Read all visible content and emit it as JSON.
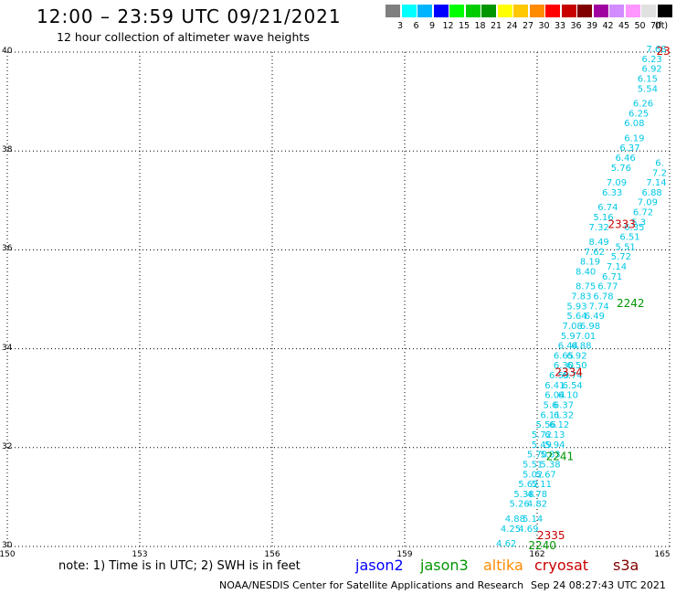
{
  "header": {
    "title": "12:00 – 23:59 UTC 09/21/2021",
    "subtitle": "12 hour collection of altimeter wave heights"
  },
  "scale": {
    "unit": "(ft)",
    "bins": [
      {
        "color": "#7f7f7f",
        "label": "3"
      },
      {
        "color": "#00ffff",
        "label": "6"
      },
      {
        "color": "#00b4ff",
        "label": "9"
      },
      {
        "color": "#0000ff",
        "label": "12"
      },
      {
        "color": "#00ff00",
        "label": "15"
      },
      {
        "color": "#00cc00",
        "label": "18"
      },
      {
        "color": "#009600",
        "label": "21"
      },
      {
        "color": "#ffff00",
        "label": "24"
      },
      {
        "color": "#ffc800",
        "label": "27"
      },
      {
        "color": "#ff8c00",
        "label": "30"
      },
      {
        "color": "#ff0000",
        "label": "33"
      },
      {
        "color": "#c80000",
        "label": "36"
      },
      {
        "color": "#800000",
        "label": "39"
      },
      {
        "color": "#a000a0",
        "label": "42"
      },
      {
        "color": "#d28cff",
        "label": "45"
      },
      {
        "color": "#ff96ff",
        "label": "50"
      },
      {
        "color": "#e0e0e0",
        "label": "70"
      },
      {
        "color": "#000000",
        "label": ""
      }
    ]
  },
  "axes": {
    "lat_labels": [
      "40",
      "38",
      "36",
      "34",
      "32",
      "30"
    ],
    "lon_labels": [
      "150",
      "153",
      "156",
      "159",
      "162",
      "165"
    ]
  },
  "chart_data": {
    "type": "scatter",
    "lon_range": [
      150,
      165
    ],
    "lat_range": [
      30,
      40
    ],
    "grid": true,
    "value_color": "#00c8e6",
    "series": [
      {
        "name": "jason3",
        "values": [
          [
            161.3,
            30.0,
            "4.62"
          ],
          [
            161.4,
            30.3,
            "4.25"
          ],
          [
            161.5,
            30.5,
            "4.88"
          ],
          [
            161.6,
            30.8,
            "5.26"
          ],
          [
            161.7,
            31.0,
            "5.38"
          ],
          [
            161.8,
            31.2,
            "5.62"
          ],
          [
            161.9,
            31.4,
            "5.02"
          ],
          [
            161.9,
            31.6,
            "5.51"
          ],
          [
            162.0,
            31.8,
            "5.70"
          ],
          [
            162.1,
            32.0,
            "5.49"
          ],
          [
            162.1,
            32.2,
            "5.72"
          ],
          [
            162.2,
            32.4,
            "5.56"
          ],
          [
            162.3,
            32.6,
            "6.11"
          ],
          [
            162.3,
            32.8,
            "5.6"
          ],
          [
            162.4,
            33.0,
            "6.04"
          ],
          [
            162.4,
            33.2,
            "6.41"
          ],
          [
            162.5,
            33.4,
            "6.59"
          ],
          [
            162.6,
            33.6,
            "6.30"
          ],
          [
            162.6,
            33.8,
            "6.65"
          ],
          [
            162.7,
            34.0,
            "6.44"
          ],
          [
            162.7,
            34.2,
            "5.9"
          ],
          [
            162.8,
            34.4,
            "7.08"
          ],
          [
            162.9,
            34.6,
            "5.64"
          ],
          [
            162.9,
            34.8,
            "5.93"
          ],
          [
            163.0,
            35.0,
            "7.83"
          ],
          [
            163.1,
            35.2,
            "8.75"
          ],
          [
            163.1,
            35.5,
            "8.40"
          ],
          [
            163.2,
            35.7,
            "8.19"
          ],
          [
            163.3,
            35.9,
            "7.62"
          ],
          [
            163.4,
            36.1,
            "8.49"
          ],
          [
            163.4,
            36.4,
            "7.32"
          ],
          [
            163.5,
            36.6,
            "5.16"
          ],
          [
            163.6,
            36.8,
            "6.74"
          ],
          [
            163.7,
            37.1,
            "6.33"
          ],
          [
            163.8,
            37.3,
            "7.09"
          ],
          [
            163.9,
            37.6,
            "5.76"
          ],
          [
            164.0,
            37.8,
            "6.46"
          ],
          [
            164.1,
            38.0,
            "6.37"
          ],
          [
            164.2,
            38.2,
            "6.19"
          ],
          [
            164.2,
            38.5,
            "6.08"
          ],
          [
            164.3,
            38.7,
            "6.25"
          ],
          [
            164.4,
            38.9,
            "6.26"
          ],
          [
            164.5,
            39.2,
            "5.54"
          ],
          [
            164.5,
            39.4,
            "6.15"
          ],
          [
            164.6,
            39.6,
            "6.92"
          ],
          [
            164.6,
            39.8,
            "6.23"
          ],
          [
            164.7,
            40.0,
            "7.68"
          ]
        ]
      },
      {
        "name": "cryosat",
        "values": [
          [
            161.8,
            30.3,
            "4.69"
          ],
          [
            161.9,
            30.5,
            "5.14"
          ],
          [
            162.0,
            30.8,
            "4.82"
          ],
          [
            162.0,
            31.0,
            "4.78"
          ],
          [
            162.1,
            31.2,
            "5.11"
          ],
          [
            162.2,
            31.4,
            "5.67"
          ],
          [
            162.3,
            31.6,
            "5.38"
          ],
          [
            162.3,
            31.8,
            "5.83"
          ],
          [
            162.4,
            32.0,
            "5.94"
          ],
          [
            162.4,
            32.2,
            "6.13"
          ],
          [
            162.5,
            32.4,
            "6.12"
          ],
          [
            162.6,
            32.6,
            "6.32"
          ],
          [
            162.6,
            32.8,
            "6.37"
          ],
          [
            162.7,
            33.0,
            "6.10"
          ],
          [
            162.8,
            33.2,
            "6.54"
          ],
          [
            162.8,
            33.4,
            "6.74"
          ],
          [
            162.9,
            33.6,
            "6.50"
          ],
          [
            162.9,
            33.8,
            "6.92"
          ],
          [
            163.0,
            34.0,
            "6.88"
          ],
          [
            163.1,
            34.2,
            "7.01"
          ],
          [
            163.2,
            34.4,
            "6.98"
          ],
          [
            163.3,
            34.6,
            "6.49"
          ],
          [
            163.4,
            34.8,
            "7.74"
          ],
          [
            163.5,
            35.0,
            "6.78"
          ],
          [
            163.6,
            35.2,
            "6.77"
          ],
          [
            163.7,
            35.4,
            "6.71"
          ],
          [
            163.8,
            35.6,
            "7.14"
          ],
          [
            163.9,
            35.8,
            "5.72"
          ],
          [
            164.0,
            36.0,
            "5.51"
          ],
          [
            164.1,
            36.2,
            "6.51"
          ],
          [
            164.2,
            36.4,
            "6.35"
          ],
          [
            164.3,
            36.5,
            "5.3"
          ],
          [
            164.4,
            36.7,
            "6.72"
          ],
          [
            164.5,
            36.9,
            "7.09"
          ],
          [
            164.6,
            37.1,
            "6.88"
          ],
          [
            164.7,
            37.3,
            "7.14"
          ],
          [
            164.8,
            37.5,
            "7.2"
          ],
          [
            164.9,
            37.7,
            "6."
          ]
        ]
      }
    ],
    "time_labels": [
      {
        "lon": 161.8,
        "lat": 30.0,
        "text": "2240",
        "sat": "jason3"
      },
      {
        "lon": 162.0,
        "lat": 30.2,
        "text": "2335",
        "sat": "cryosat"
      },
      {
        "lon": 162.2,
        "lat": 31.8,
        "text": "2241",
        "sat": "jason3"
      },
      {
        "lon": 162.4,
        "lat": 33.5,
        "text": "2334",
        "sat": "cryosat"
      },
      {
        "lon": 163.8,
        "lat": 34.9,
        "text": "2242",
        "sat": "jason3"
      },
      {
        "lon": 163.6,
        "lat": 36.5,
        "text": "2333",
        "sat": "cryosat"
      },
      {
        "lon": 164.7,
        "lat": 40.0,
        "text": "23",
        "sat": "cryosat"
      }
    ]
  },
  "legend": {
    "note": "note: 1) Time is in UTC; 2) SWH is in feet",
    "satellites": [
      {
        "name": "jason2",
        "color": "#0000ff"
      },
      {
        "name": "jason3",
        "color": "#009600"
      },
      {
        "name": "altika",
        "color": "#ff8c00"
      },
      {
        "name": "cryosat",
        "color": "#c80000"
      },
      {
        "name": "s3a",
        "color": "#800000"
      }
    ]
  },
  "footer": {
    "credit": "NOAA/NESDIS Center for Satellite Applications and Research",
    "timestamp": "Sep 24 08:27:43 UTC 2021"
  }
}
